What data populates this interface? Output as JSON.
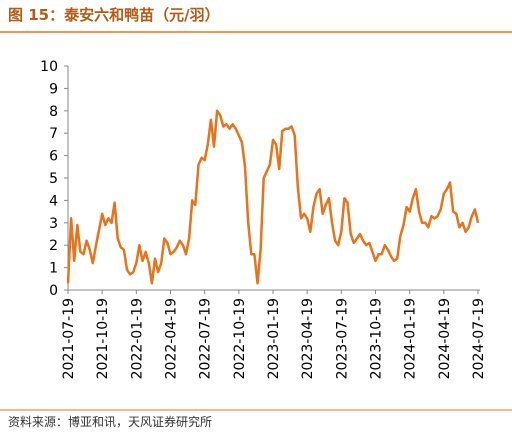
{
  "chart_data": {
    "type": "line",
    "title": "图 15：泰安六和鸭苗（元/羽）",
    "source": "资料来源：博亚和讯，天风证券研究所",
    "categories": [
      "2021-07-19",
      null,
      null,
      null,
      null,
      null,
      null,
      null,
      null,
      null,
      null,
      "2021-10-19",
      null,
      null,
      null,
      null,
      null,
      null,
      null,
      null,
      null,
      null,
      "2022-01-19",
      null,
      null,
      null,
      null,
      null,
      null,
      null,
      null,
      null,
      null,
      "2022-04-19",
      null,
      null,
      null,
      null,
      null,
      null,
      null,
      null,
      null,
      null,
      "2022-07-19",
      null,
      null,
      null,
      null,
      null,
      null,
      null,
      null,
      null,
      null,
      "2022-10-19",
      null,
      null,
      null,
      null,
      null,
      null,
      null,
      null,
      null,
      null,
      "2023-01-19",
      null,
      null,
      null,
      null,
      null,
      null,
      null,
      null,
      null,
      null,
      "2023-04-19",
      null,
      null,
      null,
      null,
      null,
      null,
      null,
      null,
      null,
      null,
      "2023-07-19",
      null,
      null,
      null,
      null,
      null,
      null,
      null,
      null,
      null,
      null,
      "2023-10-19",
      null,
      null,
      null,
      null,
      null,
      null,
      null,
      null,
      null,
      null,
      "2024-01-19",
      null,
      null,
      null,
      null,
      null,
      null,
      null,
      null,
      null,
      null,
      "2024-04-19",
      null,
      null,
      null,
      null,
      null,
      null,
      null,
      null,
      null,
      null,
      "2024-07-19"
    ],
    "series": [
      {
        "color": "#e8731a",
        "values": [
          0.3,
          3.2,
          1.3,
          2.9,
          1.7,
          1.6,
          2.2,
          1.8,
          1.2,
          2.0,
          2.7,
          3.4,
          2.9,
          3.2,
          3.0,
          3.9,
          2.3,
          1.9,
          1.8,
          0.9,
          0.7,
          0.8,
          1.2,
          2.0,
          1.3,
          1.7,
          1.2,
          0.3,
          1.4,
          0.8,
          1.2,
          2.3,
          2.1,
          1.6,
          1.7,
          1.9,
          2.2,
          2.0,
          1.6,
          2.3,
          4.0,
          3.8,
          5.6,
          5.9,
          5.8,
          6.5,
          7.6,
          6.4,
          8.0,
          7.8,
          7.3,
          7.4,
          7.2,
          7.4,
          7.2,
          6.9,
          6.6,
          5.5,
          3.0,
          1.6,
          1.6,
          0.3,
          1.8,
          5.0,
          5.3,
          5.6,
          6.7,
          6.5,
          5.4,
          7.1,
          7.2,
          7.2,
          7.3,
          6.9,
          4.6,
          3.2,
          3.4,
          3.2,
          2.6,
          3.7,
          4.3,
          4.5,
          3.4,
          3.8,
          4.1,
          3.0,
          2.2,
          2.0,
          2.6,
          4.1,
          3.9,
          2.5,
          2.1,
          2.3,
          2.5,
          2.2,
          2.0,
          2.1,
          1.7,
          1.3,
          1.6,
          1.6,
          2.0,
          1.8,
          1.5,
          1.3,
          1.4,
          2.4,
          2.9,
          3.7,
          3.5,
          4.1,
          4.5,
          3.5,
          3.0,
          3.0,
          2.8,
          3.3,
          3.2,
          3.3,
          3.6,
          4.3,
          4.5,
          4.8,
          3.5,
          3.4,
          2.8,
          3.0,
          2.6,
          2.8,
          3.3,
          3.6,
          3.0
        ]
      }
    ],
    "ylim": [
      0,
      10
    ],
    "yticks": [
      0,
      1,
      2,
      3,
      4,
      5,
      6,
      7,
      8,
      9,
      10
    ]
  }
}
